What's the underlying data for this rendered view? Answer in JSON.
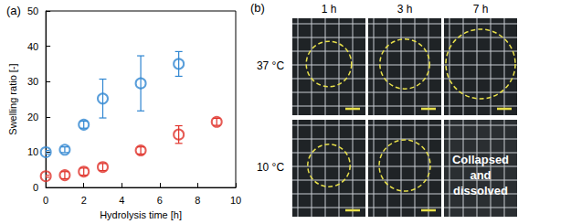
{
  "chart_data": {
    "type": "scatter",
    "title": "(a)",
    "x_label": "Hydrolysis time [h]",
    "y_label": "Swelling ratio [-]",
    "xlim": [
      0,
      10
    ],
    "xticks": [
      0,
      2,
      4,
      6,
      8,
      10
    ],
    "ylim": [
      0,
      50
    ],
    "yticks": [
      0,
      10,
      20,
      30,
      40,
      50
    ],
    "grid": false,
    "series": [
      {
        "color": "#2f86d1",
        "marker": "circle",
        "x": [
          0,
          1,
          2,
          3,
          5,
          7
        ],
        "values": [
          10,
          10.7,
          17.8,
          25.2,
          29.5,
          35
        ],
        "errors": [
          0.5,
          0.8,
          1,
          5.5,
          7.8,
          3.5
        ]
      },
      {
        "color": "#e0322a",
        "marker": "circle",
        "x": [
          0,
          1,
          2,
          3,
          5,
          7,
          9
        ],
        "values": [
          3.2,
          3.5,
          4.5,
          5.8,
          10.5,
          15,
          18.6
        ],
        "errors": [
          0.3,
          1,
          1,
          1,
          1,
          2.5,
          1
        ]
      }
    ]
  },
  "panel_b": {
    "label": "(b)",
    "columns": [
      "1 h",
      "3 h",
      "7 h"
    ],
    "rows": [
      {
        "label": "37 °C",
        "notes": [
          null,
          null,
          null
        ]
      },
      {
        "label": "10 °C",
        "notes": [
          null,
          null,
          "Collapsed and dissolved"
        ]
      }
    ]
  }
}
